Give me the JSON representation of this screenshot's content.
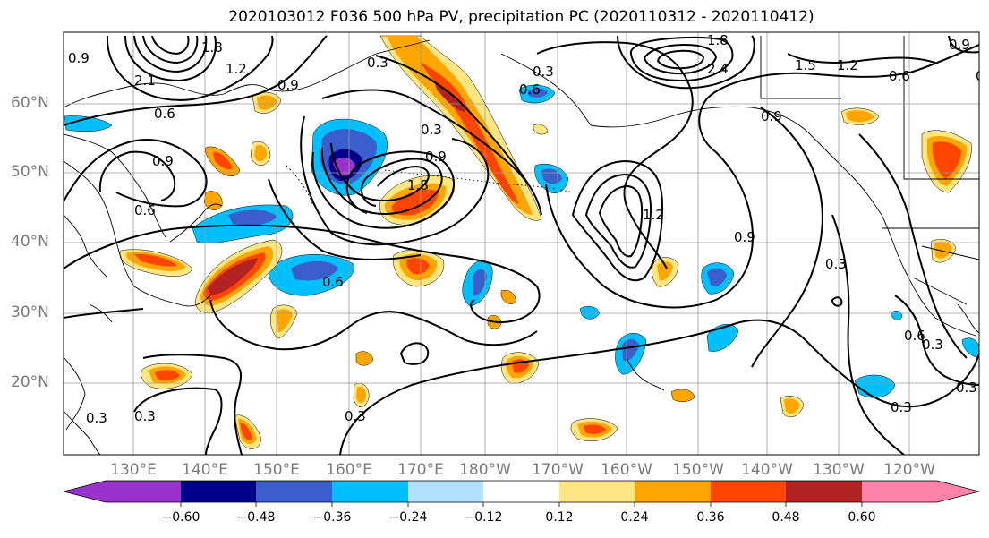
{
  "title": "2020103012 F036 500 hPa PV, precipitation PC (2020110312 - 2020110412)",
  "lat_labels": [
    "60°N",
    "50°N",
    "40°N",
    "30°N",
    "20°N"
  ],
  "lon_labels": [
    "130°E",
    "140°E",
    "150°E",
    "160°E",
    "170°E",
    "180°W",
    "170°W",
    "160°W",
    "150°W",
    "140°W",
    "130°W",
    "120°W"
  ],
  "colorbar": {
    "tick_labels": [
      "−0.60",
      "−0.48",
      "−0.36",
      "−0.24",
      "−0.12",
      "0.12",
      "0.24",
      "0.36",
      "0.48",
      "0.60"
    ],
    "colors": [
      "#9a32cd",
      "#00008b",
      "#3a5fcd",
      "#00bfff",
      "#b0e2ff",
      "#ffffff",
      "#ffe680",
      "#ffa500",
      "#ff4500",
      "#b22222",
      "#ff82ab"
    ]
  },
  "contour_labels": [
    "2.1",
    "1.8",
    "1.2",
    "0.9",
    "0.6",
    "1.8",
    "2.4",
    "1.5",
    "1.2",
    "0.9",
    "0.6",
    "0.9",
    "0.6",
    "0.3",
    "0.9",
    "0.9",
    "1.8",
    "1.2",
    "0.9",
    "0.3",
    "0.6",
    "0.6",
    "0.3",
    "0.3",
    "0.3",
    "0.6",
    "0.3",
    "0.3",
    "0.3",
    "0.6",
    "0.9",
    "0.3",
    "0.3"
  ]
}
